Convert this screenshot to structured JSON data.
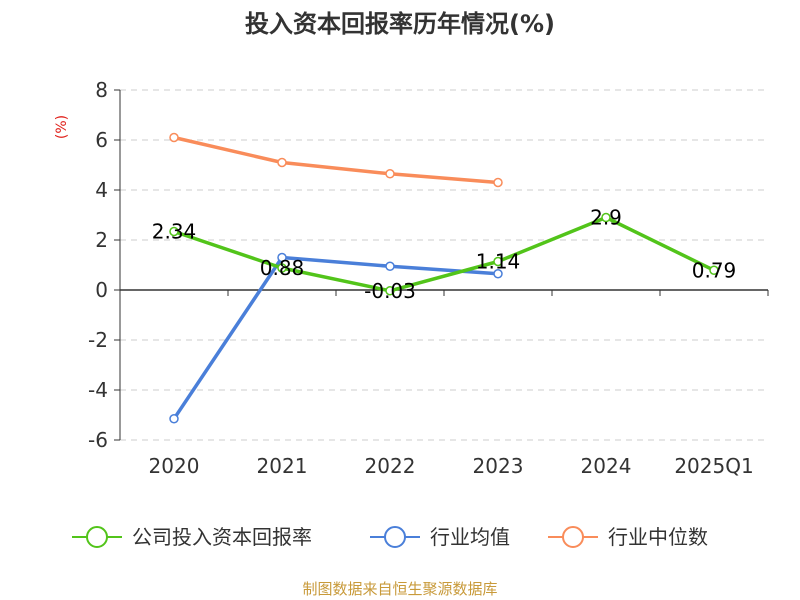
{
  "chart_data": {
    "type": "line",
    "title": "投入资本回报率历年情况(%)",
    "ylabel": "(%)",
    "xlabel": "",
    "categories": [
      "2020",
      "2021",
      "2022",
      "2023",
      "2024",
      "2025Q1"
    ],
    "ylim": [
      -6,
      8
    ],
    "yticks": [
      8,
      6,
      4,
      2,
      0,
      -2,
      -4,
      -6
    ],
    "grid": true,
    "legend_position": "bottom",
    "series": [
      {
        "name": "公司投入资本回报率",
        "color": "#52c41a",
        "values": [
          2.34,
          0.88,
          -0.03,
          1.14,
          2.9,
          0.79
        ],
        "labels": [
          "2.34",
          "0.88",
          "-0.03",
          "1.14",
          "2.9",
          "0.79"
        ]
      },
      {
        "name": "行业均值",
        "color": "#4a7fd9",
        "values": [
          -5.15,
          1.3,
          0.95,
          0.65,
          null,
          null
        ]
      },
      {
        "name": "行业中位数",
        "color": "#f98c5a",
        "values": [
          6.1,
          5.1,
          4.65,
          4.3,
          null,
          null
        ]
      }
    ]
  },
  "colors": {
    "unit": "#e0201a",
    "source": "#c89a3a",
    "axis": "#333333",
    "grid": "#cccccc"
  },
  "source": "制图数据来自恒生聚源数据库"
}
